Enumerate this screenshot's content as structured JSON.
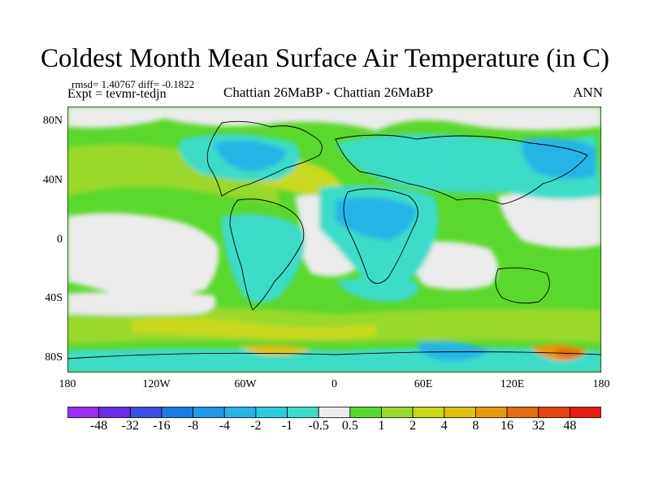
{
  "title": "Coldest Month Mean Surface Air Temperature (in C)",
  "stats": "rmsd= 1.40767 diff= -0.1822",
  "expt": "Expt = tevmr-tedjn",
  "subtitle": "Chattian  26MaBP - Chattian  26MaBP",
  "season": "ANN",
  "y_ticks": [
    {
      "label": "80N",
      "lat": 80
    },
    {
      "label": "40N",
      "lat": 40
    },
    {
      "label": "0",
      "lat": 0
    },
    {
      "label": "40S",
      "lat": -40
    },
    {
      "label": "80S",
      "lat": -80
    }
  ],
  "x_ticks": [
    {
      "label": "180",
      "lon": -180
    },
    {
      "label": "120W",
      "lon": -120
    },
    {
      "label": "60W",
      "lon": -60
    },
    {
      "label": "0",
      "lon": 0
    },
    {
      "label": "60E",
      "lon": 60
    },
    {
      "label": "120E",
      "lon": 120
    },
    {
      "label": "180",
      "lon": 180
    }
  ],
  "colorbar": {
    "labels": [
      "-48",
      "-32",
      "-16",
      "-8",
      "-4",
      "-2",
      "-1",
      "-0.5",
      "0.5",
      "1",
      "2",
      "4",
      "8",
      "16",
      "32",
      "48"
    ],
    "colors": [
      "#9c2cf0",
      "#6a2ce6",
      "#3c4ce6",
      "#1c7ae6",
      "#1e9ae6",
      "#26b4e6",
      "#2ccce0",
      "#3cdcc8",
      "#ebebeb",
      "#5ad82c",
      "#9ad82c",
      "#c8d81c",
      "#e0c010",
      "#e69a10",
      "#e66c10",
      "#e64410",
      "#e61c10"
    ]
  },
  "chart_data": {
    "type": "heatmap",
    "title": "Coldest Month Mean Surface Air Temperature (in C)",
    "xlim": [
      -180,
      180
    ],
    "ylim": [
      -90,
      90
    ],
    "units": "C"
  }
}
